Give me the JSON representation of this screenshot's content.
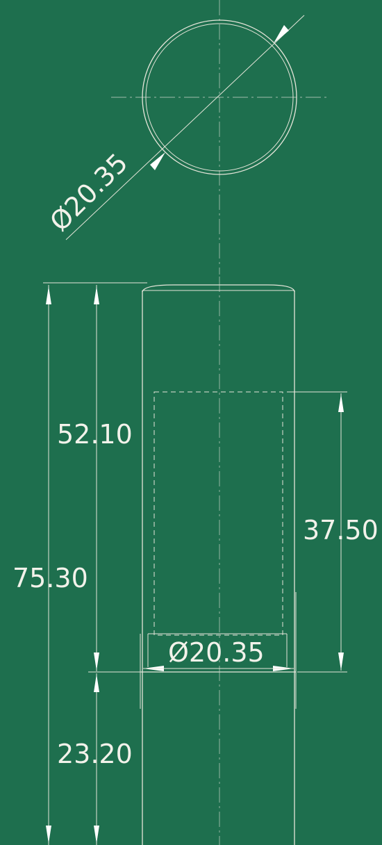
{
  "dimensions": {
    "circle_diameter": "Ø20.35",
    "upper_length": "52.10",
    "overall_length": "75.30",
    "lower_length": "23.20",
    "bore_depth": "37.50",
    "section_diameter": "Ø20.35"
  },
  "colors": {
    "background": "#1e6f4e",
    "line": "#e6e6da",
    "text": "#f2f2ea"
  }
}
